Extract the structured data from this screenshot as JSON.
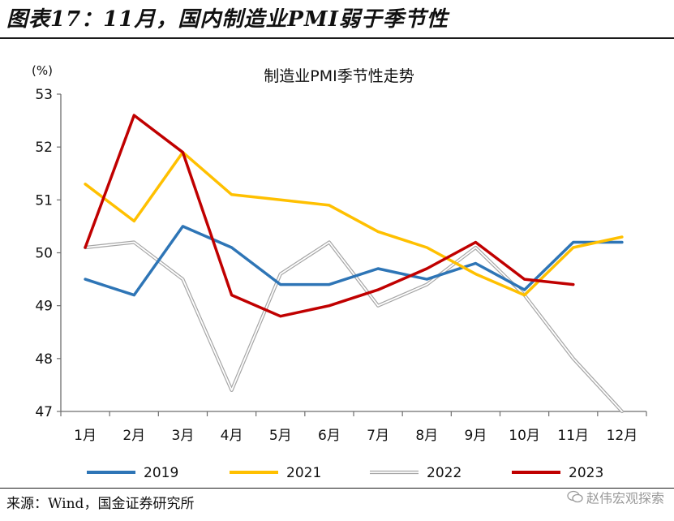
{
  "header": {
    "title": "图表17：11月，国内制造业PMI弱于季节性"
  },
  "footer": {
    "source": "来源：Wind，国金证券研究所",
    "watermark": "赵伟宏观探索"
  },
  "chart_data": {
    "type": "line",
    "title": "制造业PMI季节性走势",
    "ylabel": "(%)",
    "xlabel": "",
    "categories": [
      "1月",
      "2月",
      "3月",
      "4月",
      "5月",
      "6月",
      "7月",
      "8月",
      "9月",
      "10月",
      "11月",
      "12月"
    ],
    "ylim": [
      47,
      53
    ],
    "yticks": [
      47,
      48,
      49,
      50,
      51,
      52,
      53
    ],
    "grid": false,
    "legend": "bottom",
    "series": [
      {
        "name": "2019",
        "color": "#2e75b6",
        "width": 3.5,
        "values": [
          49.5,
          49.2,
          50.5,
          50.1,
          49.4,
          49.4,
          49.7,
          49.5,
          49.8,
          49.3,
          50.2,
          50.2
        ]
      },
      {
        "name": "2021",
        "color": "#ffc000",
        "width": 3.5,
        "values": [
          51.3,
          50.6,
          51.9,
          51.1,
          51.0,
          50.9,
          50.4,
          50.1,
          49.6,
          49.2,
          50.1,
          50.3
        ]
      },
      {
        "name": "2022",
        "color": "#a6a6a6",
        "width": 1.5,
        "hollow": true,
        "values": [
          50.1,
          50.2,
          49.5,
          47.4,
          49.6,
          50.2,
          49.0,
          49.4,
          50.1,
          49.2,
          48.0,
          47.0
        ]
      },
      {
        "name": "2023",
        "color": "#c00000",
        "width": 3.5,
        "values": [
          50.1,
          52.6,
          51.9,
          49.2,
          48.8,
          49.0,
          49.3,
          49.7,
          50.2,
          49.5,
          49.4,
          null
        ]
      }
    ]
  }
}
